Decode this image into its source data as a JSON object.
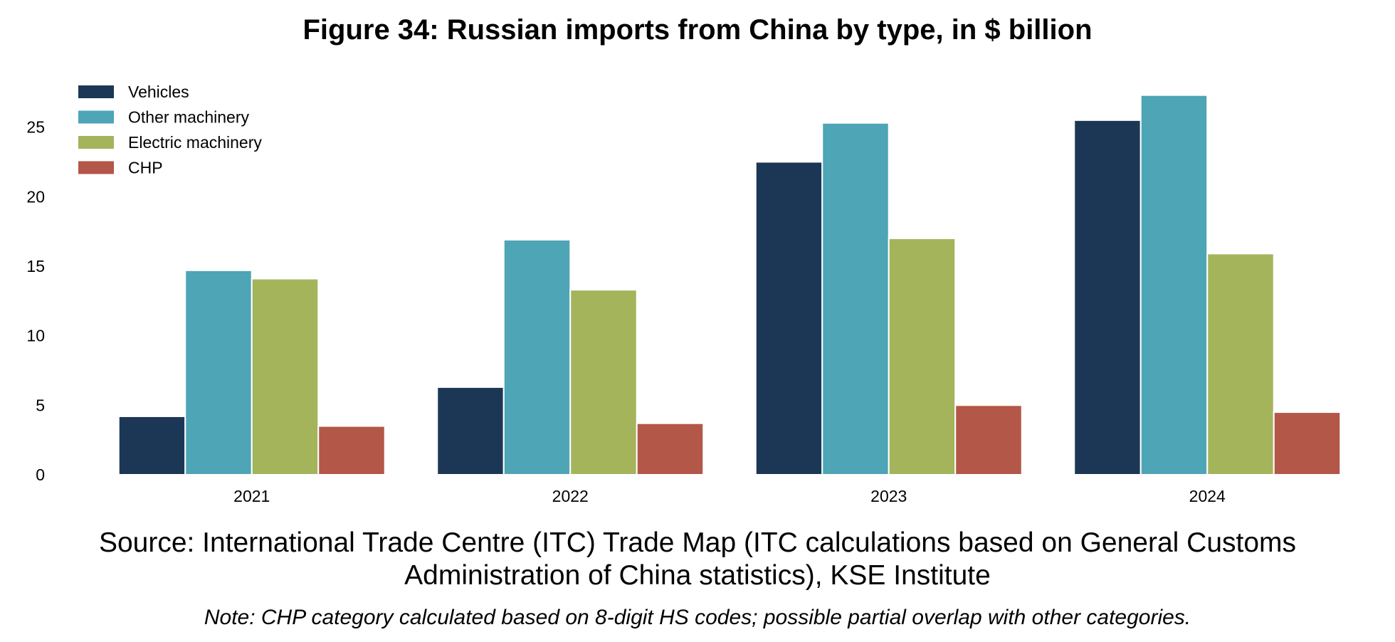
{
  "chart_data": {
    "type": "bar",
    "title": "Figure 34: Russian imports from China by type, in $ billion",
    "categories": [
      "2021",
      "2022",
      "2023",
      "2024"
    ],
    "series": [
      {
        "name": "Vehicles",
        "color": "#1c3756",
        "values": [
          4.2,
          6.3,
          22.5,
          25.5
        ]
      },
      {
        "name": "Other machinery",
        "color": "#4da5b6",
        "values": [
          14.7,
          16.9,
          25.3,
          27.3
        ]
      },
      {
        "name": "Electric machinery",
        "color": "#a3b45b",
        "values": [
          14.1,
          13.3,
          17.0,
          15.9
        ]
      },
      {
        "name": "CHP",
        "color": "#b35748",
        "values": [
          3.5,
          3.7,
          5.0,
          4.5
        ]
      }
    ],
    "yticks": [
      0,
      5,
      10,
      15,
      20,
      25
    ],
    "ylim": [
      0,
      28
    ],
    "xlabel": "",
    "ylabel": "",
    "grid": false,
    "legend_position": "top-left"
  },
  "source": "Source: International Trade Centre (ITC) Trade Map (ITC calculations based on General Customs Administration of China statistics), KSE Institute",
  "note": "Note: CHP category calculated based on 8-digit HS codes; possible partial overlap with other categories."
}
